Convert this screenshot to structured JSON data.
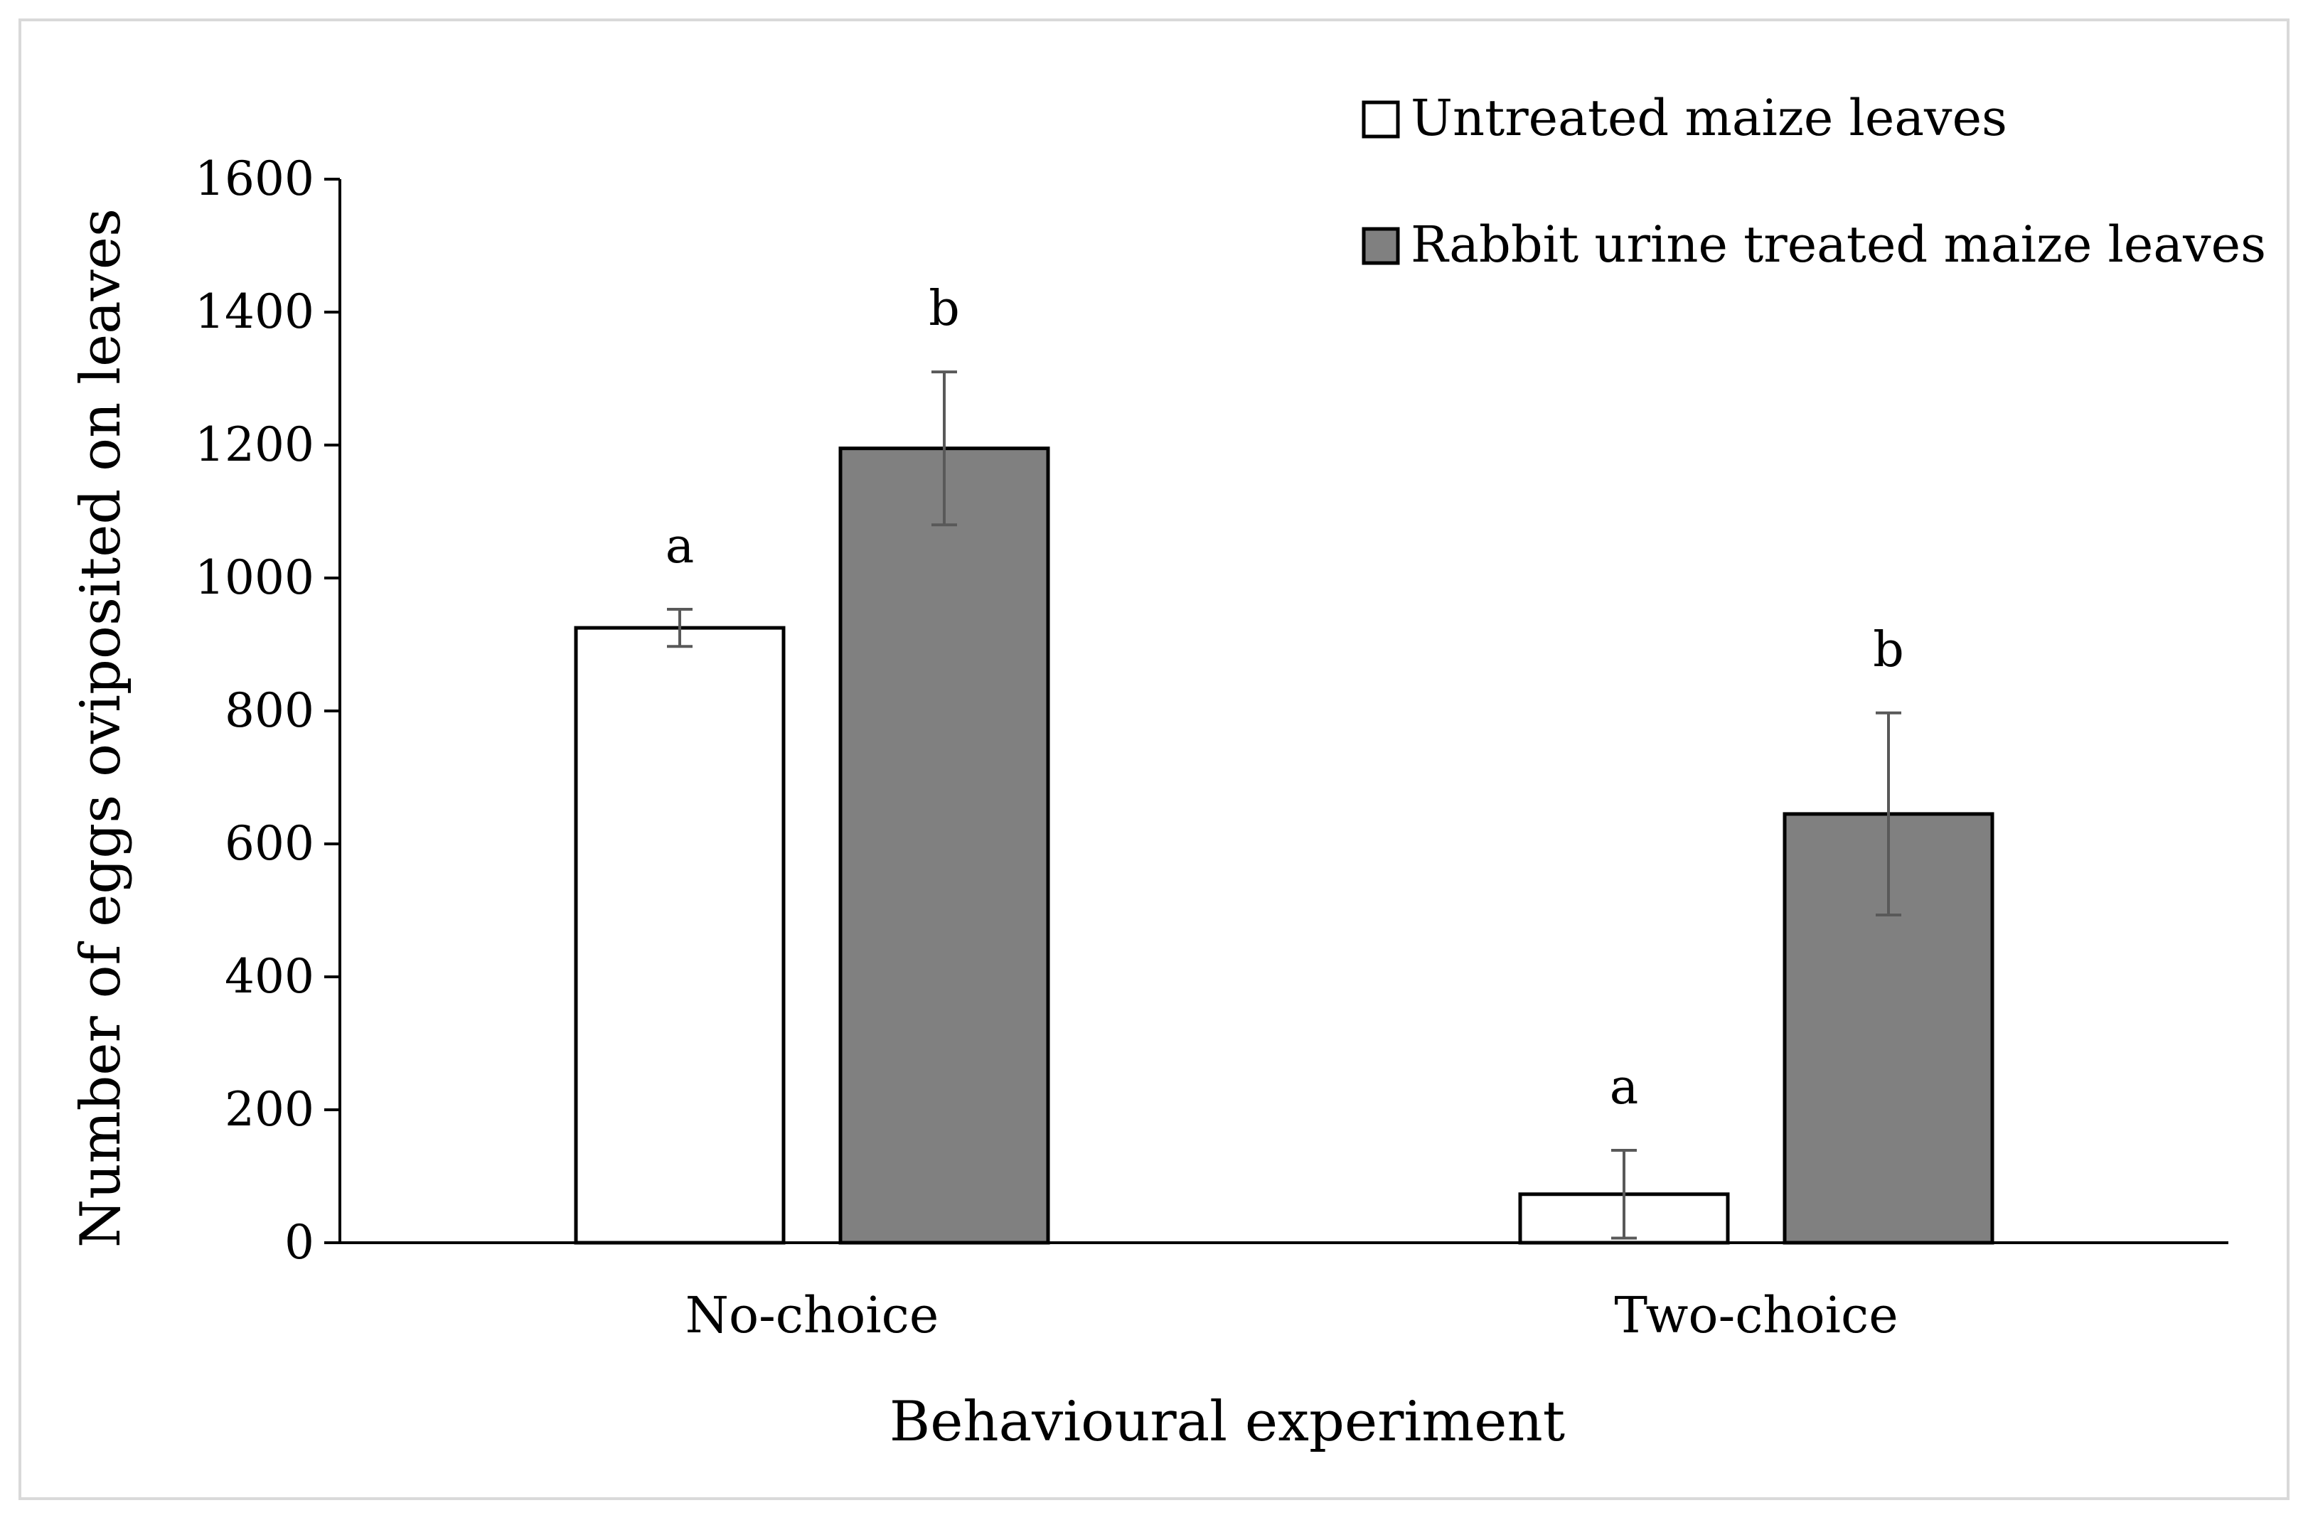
{
  "chart_data": {
    "type": "bar",
    "title": "",
    "xlabel": "Behavioural experiment",
    "ylabel": "Number of eggs oviposited on leaves",
    "ylim": [
      0,
      1600
    ],
    "yticks": [
      0,
      200,
      400,
      600,
      800,
      1000,
      1200,
      1400,
      1600
    ],
    "categories": [
      "No-choice",
      "Two-choice"
    ],
    "series": [
      {
        "name": "Untreated maize leaves",
        "color": "#ffffff",
        "values": [
          925,
          73
        ],
        "errors": [
          28,
          66
        ],
        "significance": [
          "a",
          "a"
        ]
      },
      {
        "name": "Rabbit urine treated maize leaves",
        "color": "#808080",
        "values": [
          1195,
          645
        ],
        "errors": [
          115,
          152
        ],
        "significance": [
          "b",
          "b"
        ]
      }
    ],
    "legend_position": "top-right",
    "grid": false
  }
}
